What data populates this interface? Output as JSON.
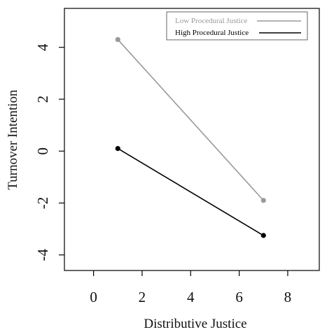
{
  "chart_data": {
    "type": "line",
    "xlabel": "Distributive Justice",
    "ylabel": "Turnover Intention",
    "xlim": [
      -1.2,
      9.3
    ],
    "ylim": [
      -4.6,
      5.5
    ],
    "x_ticks": [
      0,
      2,
      4,
      6,
      8
    ],
    "y_ticks": [
      4,
      2,
      0,
      -2,
      -4
    ],
    "grid": false,
    "legend_position": "top-right",
    "series": [
      {
        "name": "Low Procedural Justice",
        "color": "#999999",
        "x": [
          1,
          7
        ],
        "y": [
          4.3,
          -1.9
        ]
      },
      {
        "name": "High Procedural Justice",
        "color": "#000000",
        "x": [
          1,
          7
        ],
        "y": [
          0.1,
          -3.25
        ]
      }
    ]
  }
}
